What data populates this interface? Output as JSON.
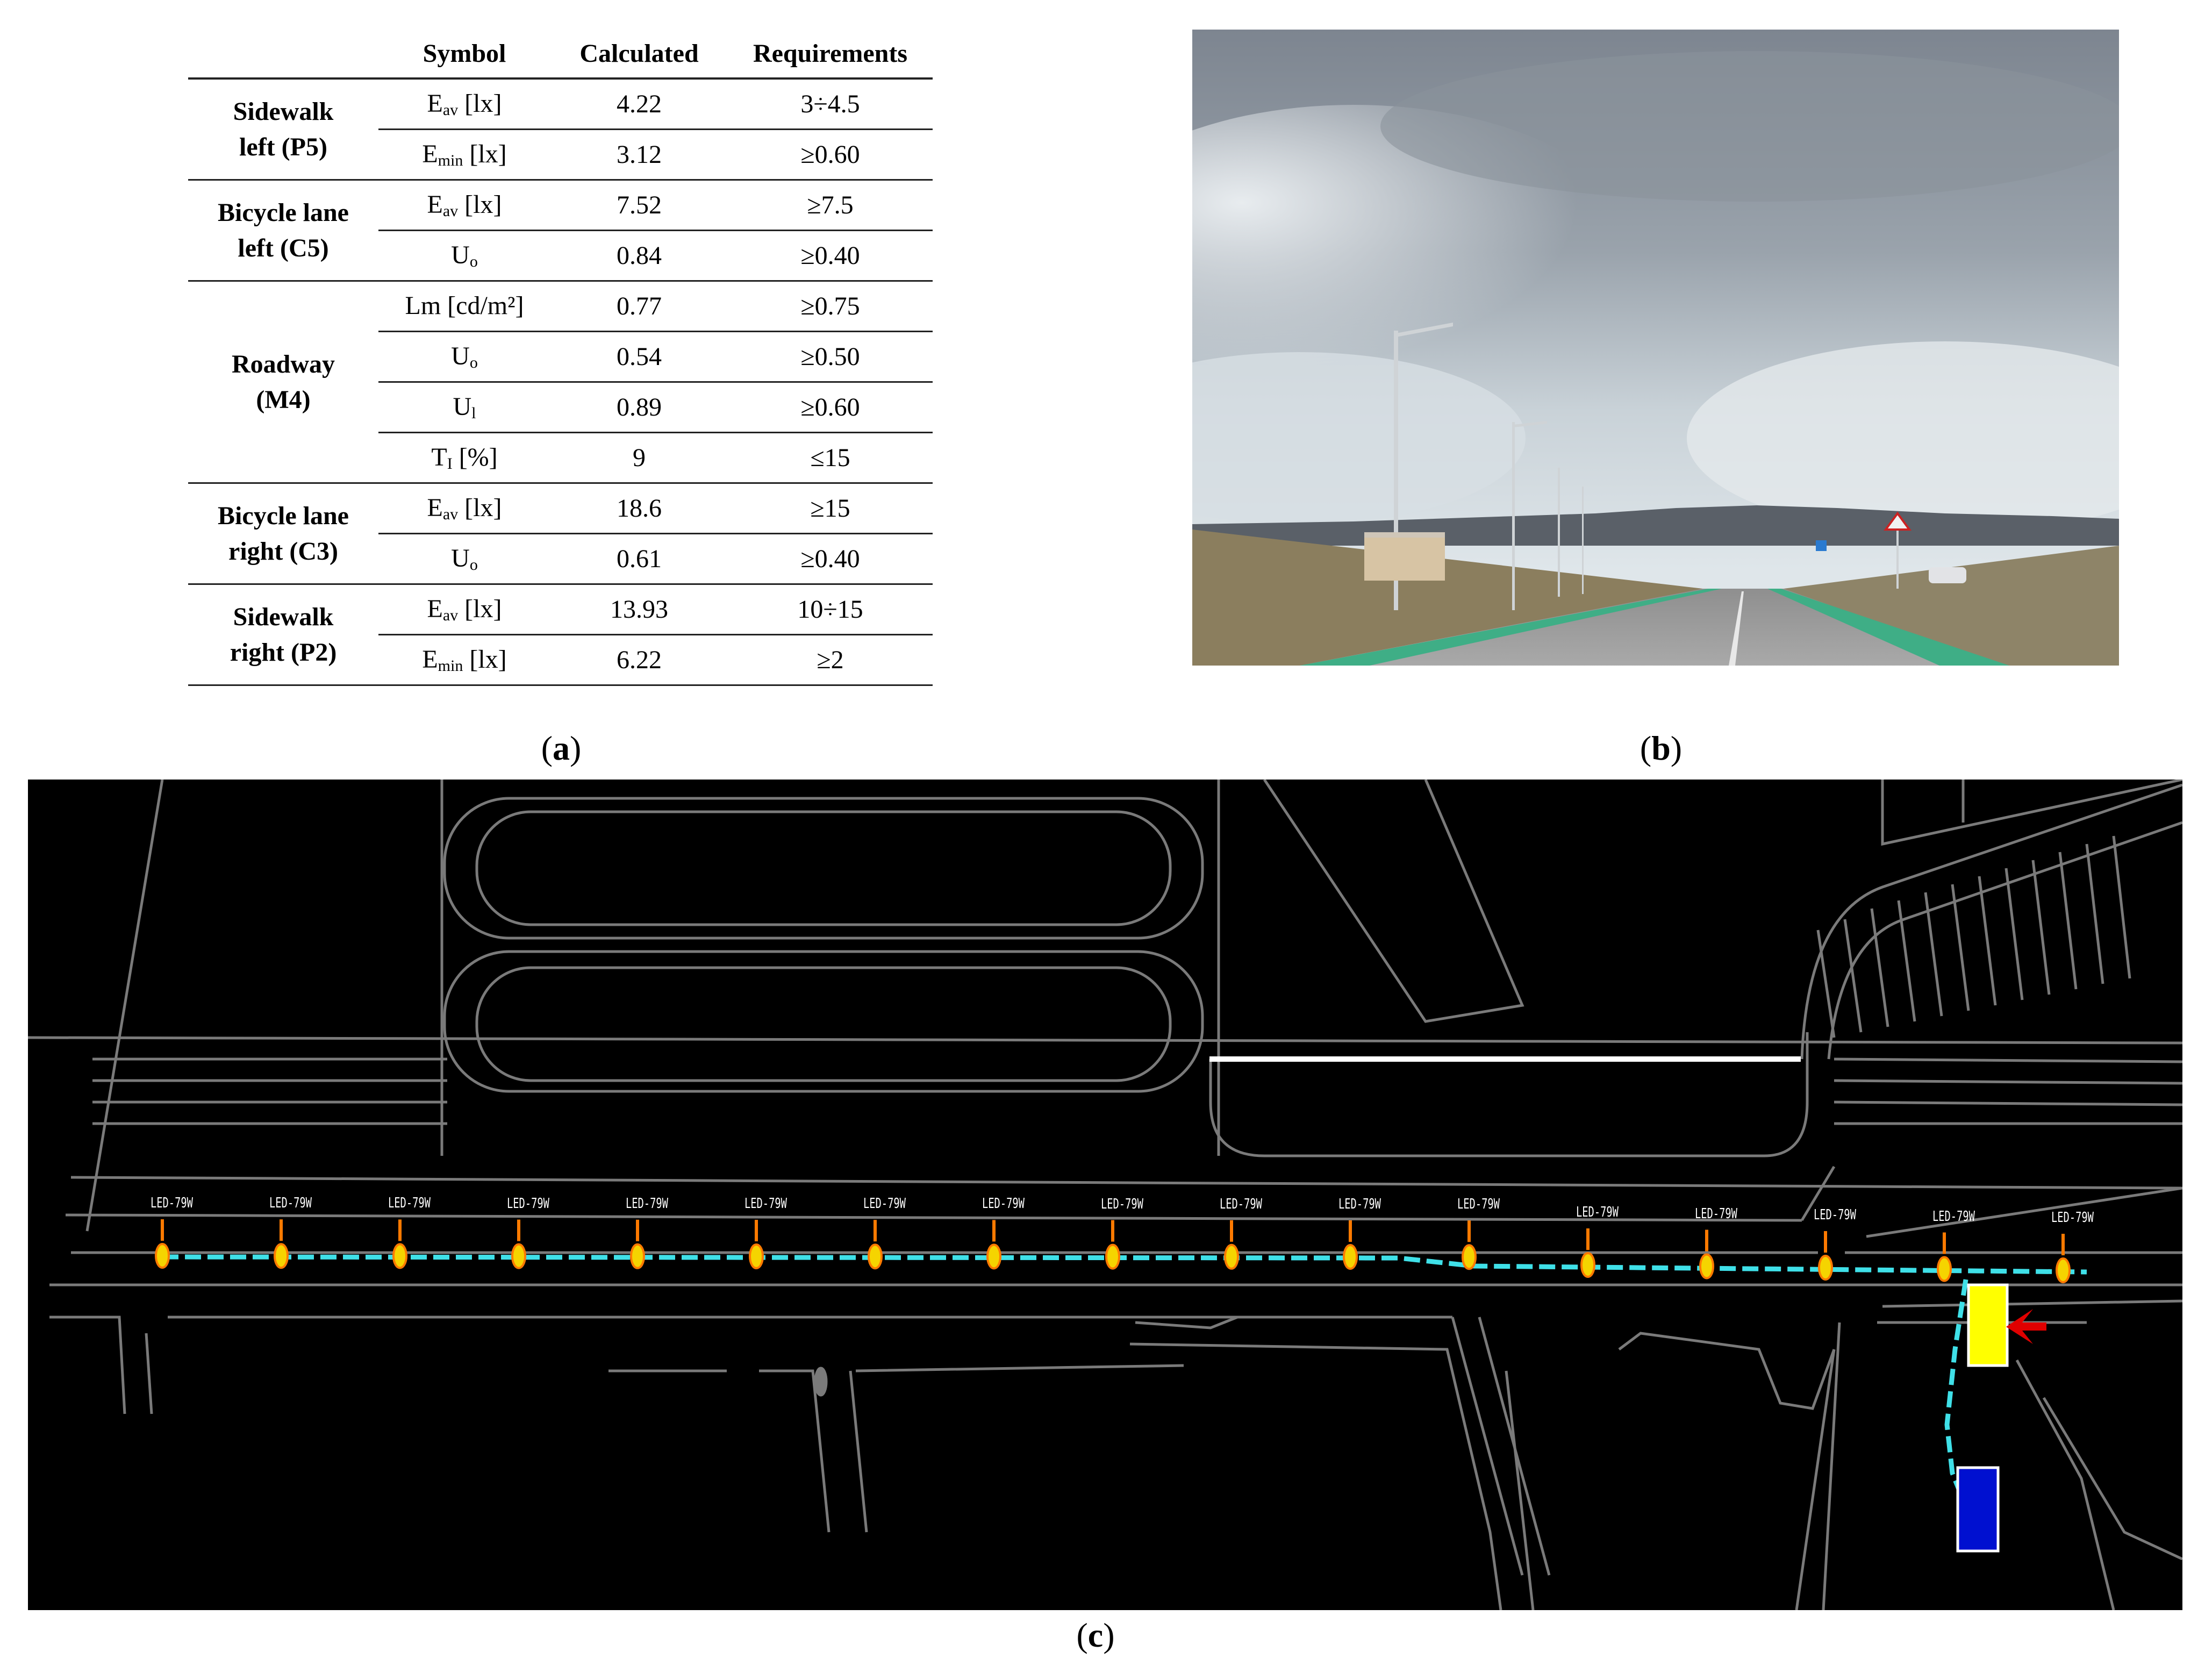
{
  "table": {
    "headers": [
      "",
      "Symbol",
      "Calculated",
      "Requirements"
    ],
    "groups": [
      {
        "name_line1": "Sidewalk",
        "name_line2": "left (P5)",
        "rows": [
          {
            "sym": "E",
            "sub": "av",
            "unit": " [lx]",
            "calc": "4.22",
            "req": "3÷4.5"
          },
          {
            "sym": "E",
            "sub": "min",
            "unit": " [lx]",
            "calc": "3.12",
            "req": "≥0.60"
          }
        ]
      },
      {
        "name_line1": "Bicycle lane",
        "name_line2": "left (C5)",
        "rows": [
          {
            "sym": "E",
            "sub": "av",
            "unit": " [lx]",
            "calc": "7.52",
            "req": "≥7.5"
          },
          {
            "sym": "U",
            "sub": "o",
            "unit": "",
            "calc": "0.84",
            "req": "≥0.40"
          }
        ]
      },
      {
        "name_line1": "Roadway",
        "name_line2": "(M4)",
        "rows": [
          {
            "sym": "Lm [cd/m²]",
            "sub": "",
            "unit": "",
            "calc": "0.77",
            "req": "≥0.75"
          },
          {
            "sym": "U",
            "sub": "o",
            "unit": "",
            "calc": "0.54",
            "req": "≥0.50"
          },
          {
            "sym": "U",
            "sub": "l",
            "unit": "",
            "calc": "0.89",
            "req": "≥0.60"
          },
          {
            "sym": "T",
            "sub": "I",
            "unit": " [%]",
            "calc": "9",
            "req": "≤15"
          }
        ]
      },
      {
        "name_line1": "Bicycle lane",
        "name_line2": "right (C3)",
        "rows": [
          {
            "sym": "E",
            "sub": "av",
            "unit": " [lx]",
            "calc": "18.6",
            "req": "≥15"
          },
          {
            "sym": "U",
            "sub": "o",
            "unit": "",
            "calc": "0.61",
            "req": "≥0.40"
          }
        ]
      },
      {
        "name_line1": "Sidewalk",
        "name_line2": "right (P2)",
        "rows": [
          {
            "sym": "E",
            "sub": "av",
            "unit": " [lx]",
            "calc": "13.93",
            "req": "10÷15"
          },
          {
            "sym": "E",
            "sub": "min",
            "unit": " [lx]",
            "calc": "6.22",
            "req": "≥2"
          }
        ]
      }
    ]
  },
  "captions": {
    "a_open": "(",
    "a_letter": "a",
    "a_close": ")",
    "b_open": "(",
    "b_letter": "b",
    "b_close": ")",
    "c_open": "(",
    "c_letter": "c",
    "c_close": ")"
  },
  "plan": {
    "luminaire_label": "LED-79W",
    "luminaire_count": 17,
    "colors": {
      "cable": "#3fe0e8",
      "lamp": "#f5d400",
      "lamp_ring": "#ff7a00",
      "box_yellow": "#ffff00",
      "box_blue": "#0010d0",
      "arrow": "#e00000",
      "lines": "#7a7a7a"
    }
  }
}
